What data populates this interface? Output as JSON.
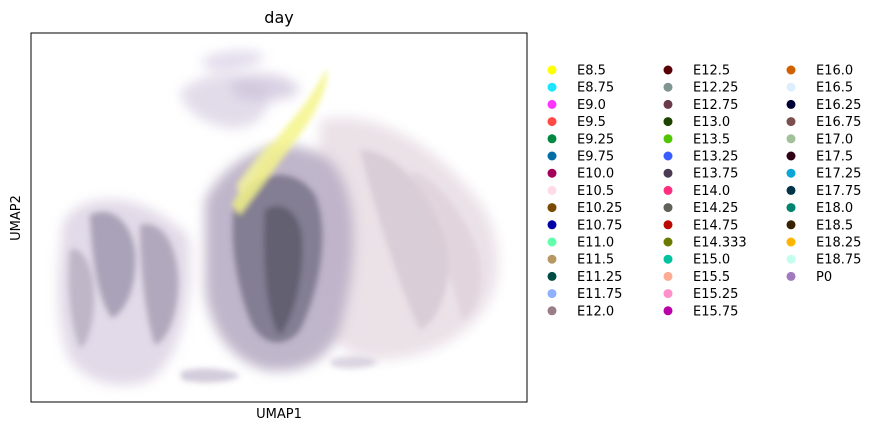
{
  "chart_data": {
    "type": "scatter",
    "title": "day",
    "xlabel": "UMAP1",
    "ylabel": "UMAP2",
    "x_ticks": [],
    "y_ticks": [],
    "grid": false,
    "legend_placement": "right, outside plot, 3 columns",
    "legend": [
      {
        "label": "E8.5",
        "color": "#ffff00"
      },
      {
        "label": "E8.75",
        "color": "#1ce6ff"
      },
      {
        "label": "E9.0",
        "color": "#ff34ff"
      },
      {
        "label": "E9.5",
        "color": "#ff4a46"
      },
      {
        "label": "E9.25",
        "color": "#008941"
      },
      {
        "label": "E9.75",
        "color": "#006fa6"
      },
      {
        "label": "E10.0",
        "color": "#a30059"
      },
      {
        "label": "E10.5",
        "color": "#ffdbe5"
      },
      {
        "label": "E10.25",
        "color": "#7a4900"
      },
      {
        "label": "E10.75",
        "color": "#0000a6"
      },
      {
        "label": "E11.0",
        "color": "#63ffac"
      },
      {
        "label": "E11.5",
        "color": "#b79762"
      },
      {
        "label": "E11.25",
        "color": "#004d43"
      },
      {
        "label": "E11.75",
        "color": "#8fb0ff"
      },
      {
        "label": "E12.0",
        "color": "#997d87"
      },
      {
        "label": "E12.5",
        "color": "#5a0007"
      },
      {
        "label": "E12.25",
        "color": "#809693"
      },
      {
        "label": "E12.75",
        "color": "#6a3a4c"
      },
      {
        "label": "E13.0",
        "color": "#1b4400"
      },
      {
        "label": "E13.5",
        "color": "#4fc601"
      },
      {
        "label": "E13.25",
        "color": "#3b5dff"
      },
      {
        "label": "E13.75",
        "color": "#4a3b53"
      },
      {
        "label": "E14.0",
        "color": "#ff2f80"
      },
      {
        "label": "E14.25",
        "color": "#61615a"
      },
      {
        "label": "E14.75",
        "color": "#ba0900"
      },
      {
        "label": "E14.333",
        "color": "#6b7900"
      },
      {
        "label": "E15.0",
        "color": "#00c2a0"
      },
      {
        "label": "E15.5",
        "color": "#ffaa92"
      },
      {
        "label": "E15.25",
        "color": "#ff90c9"
      },
      {
        "label": "E15.75",
        "color": "#b903aa"
      },
      {
        "label": "E16.0",
        "color": "#d16100"
      },
      {
        "label": "E16.5",
        "color": "#ddefff"
      },
      {
        "label": "E16.25",
        "color": "#000035"
      },
      {
        "label": "E16.75",
        "color": "#7b4f4b"
      },
      {
        "label": "E17.0",
        "color": "#a1c299"
      },
      {
        "label": "E17.5",
        "color": "#300018"
      },
      {
        "label": "E17.25",
        "color": "#0aa6d8"
      },
      {
        "label": "E17.75",
        "color": "#013349"
      },
      {
        "label": "E18.0",
        "color": "#00846f"
      },
      {
        "label": "E18.5",
        "color": "#372101"
      },
      {
        "label": "E18.25",
        "color": "#ffb500"
      },
      {
        "label": "E18.75",
        "color": "#c2ffed"
      },
      {
        "label": "P0",
        "color": "#a079bf"
      }
    ]
  }
}
